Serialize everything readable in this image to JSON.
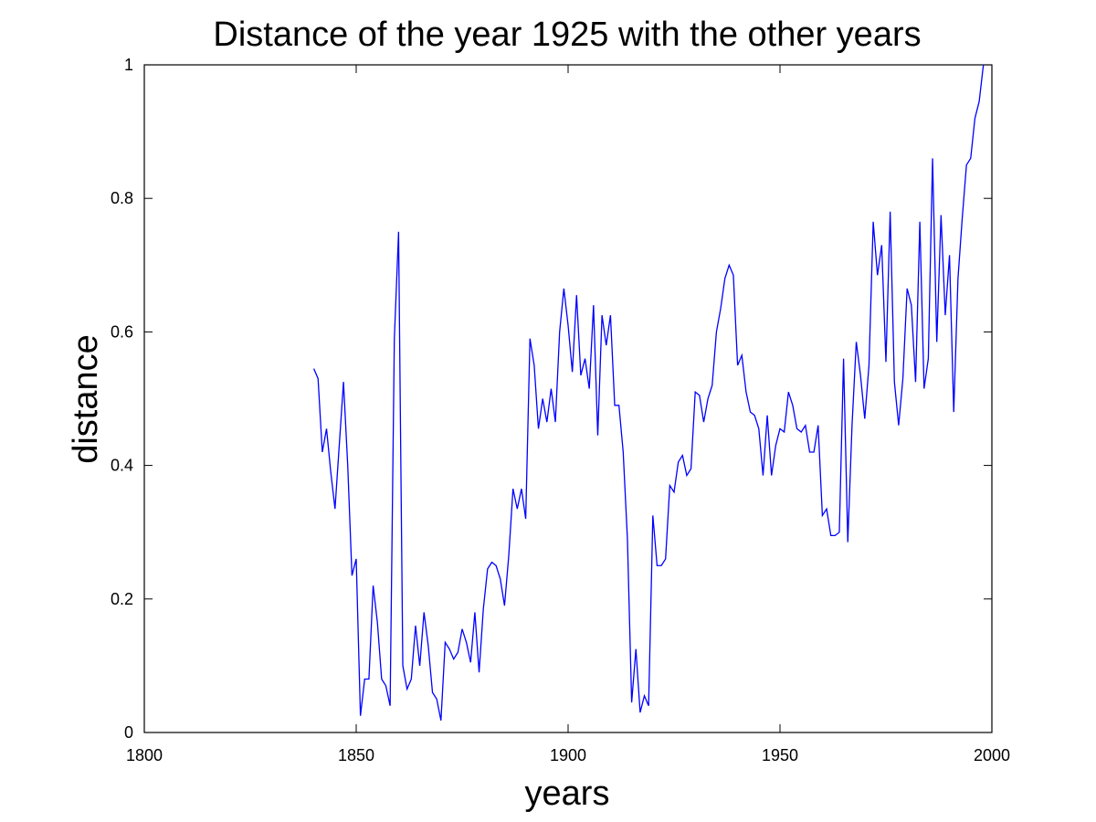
{
  "chart_data": {
    "type": "line",
    "title": "Distance of the year 1925 with the other years",
    "xlabel": "years",
    "ylabel": "distance",
    "xlim": [
      1800,
      2000
    ],
    "ylim": [
      0,
      1
    ],
    "x_ticks": [
      "1800",
      "1850",
      "1900",
      "1950",
      "2000"
    ],
    "y_ticks": [
      "0",
      "0.2",
      "0.4",
      "0.6",
      "0.8",
      "1"
    ],
    "grid": false,
    "legend": "none",
    "line_color": "#0000ff",
    "series": [
      {
        "x": [
          1840,
          1841,
          1842,
          1843,
          1844,
          1845,
          1846,
          1847,
          1848,
          1849,
          1850,
          1851,
          1852,
          1853,
          1854,
          1855,
          1856,
          1857,
          1858,
          1859,
          1860,
          1861,
          1862,
          1863,
          1864,
          1865,
          1866,
          1867,
          1868,
          1869,
          1870,
          1871,
          1872,
          1873,
          1874,
          1875,
          1876,
          1877,
          1878,
          1879,
          1880,
          1881,
          1882,
          1883,
          1884,
          1885,
          1886,
          1887,
          1888,
          1889,
          1890,
          1891,
          1892,
          1893,
          1894,
          1895,
          1896,
          1897,
          1898,
          1899,
          1900,
          1901,
          1902,
          1903,
          1904,
          1905,
          1906,
          1907,
          1908,
          1909,
          1910,
          1911,
          1912,
          1913,
          1914,
          1915,
          1916,
          1917,
          1918,
          1919,
          1920,
          1921,
          1922,
          1923,
          1924,
          1925,
          1926,
          1927,
          1928,
          1929,
          1930,
          1931,
          1932,
          1933,
          1934,
          1935,
          1936,
          1937,
          1938,
          1939,
          1940,
          1941,
          1942,
          1943,
          1944,
          1945,
          1946,
          1947,
          1948,
          1949,
          1950,
          1951,
          1952,
          1953,
          1954,
          1955,
          1956,
          1957,
          1958,
          1959,
          1960,
          1961,
          1962,
          1963,
          1964,
          1965,
          1966,
          1967,
          1968,
          1969,
          1970,
          1971,
          1972,
          1973,
          1974,
          1975,
          1976,
          1977,
          1978,
          1979,
          1980,
          1981,
          1982,
          1983,
          1984,
          1985,
          1986,
          1987,
          1988,
          1989,
          1990,
          1991,
          1992,
          1993,
          1994,
          1995,
          1996,
          1997,
          1998
        ],
        "values": [
          0.545,
          0.53,
          0.42,
          0.455,
          0.39,
          0.335,
          0.43,
          0.525,
          0.4,
          0.235,
          0.26,
          0.025,
          0.08,
          0.08,
          0.22,
          0.165,
          0.08,
          0.07,
          0.04,
          0.59,
          0.75,
          0.1,
          0.065,
          0.08,
          0.16,
          0.1,
          0.18,
          0.13,
          0.06,
          0.05,
          0.018,
          0.135,
          0.125,
          0.11,
          0.12,
          0.155,
          0.135,
          0.105,
          0.18,
          0.09,
          0.185,
          0.245,
          0.255,
          0.25,
          0.23,
          0.19,
          0.265,
          0.365,
          0.335,
          0.365,
          0.32,
          0.59,
          0.55,
          0.455,
          0.5,
          0.465,
          0.515,
          0.465,
          0.6,
          0.665,
          0.61,
          0.54,
          0.655,
          0.535,
          0.56,
          0.515,
          0.64,
          0.445,
          0.625,
          0.58,
          0.625,
          0.49,
          0.49,
          0.42,
          0.29,
          0.045,
          0.125,
          0.03,
          0.055,
          0.04,
          0.325,
          0.25,
          0.25,
          0.26,
          0.37,
          0.36,
          0.405,
          0.415,
          0.385,
          0.395,
          0.51,
          0.505,
          0.465,
          0.5,
          0.52,
          0.6,
          0.635,
          0.68,
          0.7,
          0.685,
          0.55,
          0.565,
          0.51,
          0.48,
          0.475,
          0.455,
          0.385,
          0.475,
          0.385,
          0.43,
          0.455,
          0.45,
          0.51,
          0.49,
          0.455,
          0.45,
          0.46,
          0.42,
          0.42,
          0.46,
          0.325,
          0.335,
          0.295,
          0.295,
          0.3,
          0.56,
          0.285,
          0.46,
          0.585,
          0.535,
          0.47,
          0.55,
          0.765,
          0.685,
          0.73,
          0.555,
          0.78,
          0.525,
          0.46,
          0.53,
          0.665,
          0.64,
          0.525,
          0.765,
          0.515,
          0.56,
          0.86,
          0.585,
          0.775,
          0.625,
          0.715,
          0.48,
          0.68,
          0.77,
          0.85,
          0.86,
          0.92,
          0.945,
          1.0
        ]
      }
    ]
  }
}
